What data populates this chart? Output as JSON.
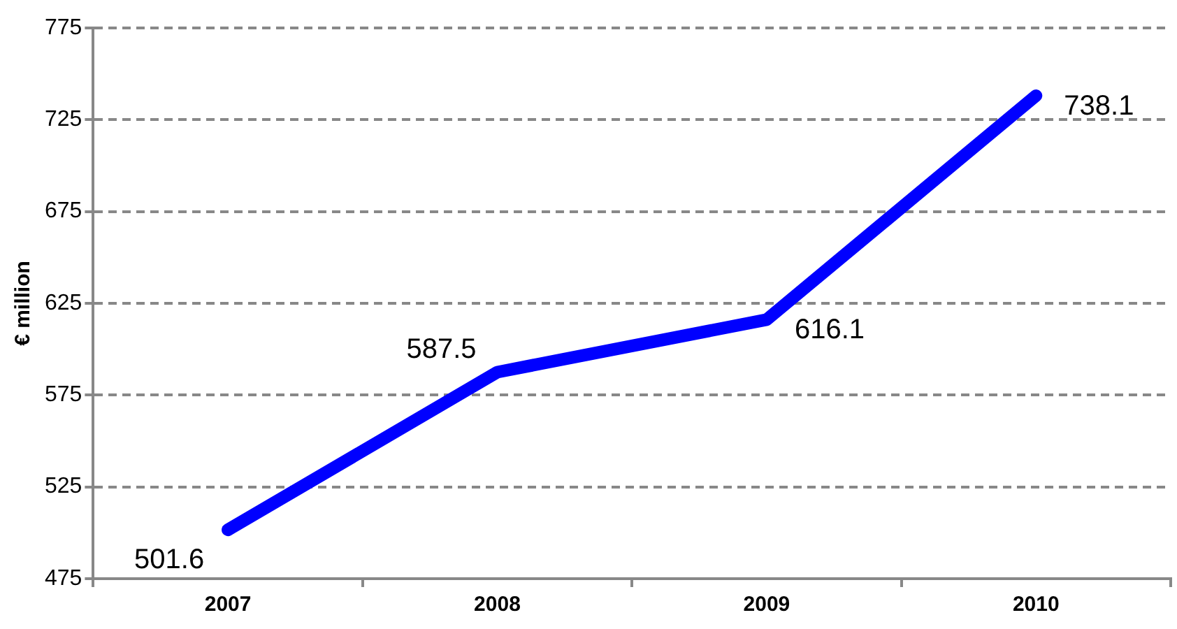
{
  "chart_data": {
    "type": "line",
    "ylabel": "€ million",
    "categories": [
      "2007",
      "2008",
      "2009",
      "2010"
    ],
    "series": [
      {
        "color": "#0000ff",
        "values": [
          501.6,
          587.5,
          616.1,
          738.1
        ]
      }
    ],
    "ylim": [
      475,
      775
    ],
    "yticks": [
      475,
      525,
      575,
      625,
      675,
      725,
      775
    ],
    "grid": "y",
    "legend": false,
    "marker": "none",
    "line_style": "solid",
    "data_labels": true
  }
}
